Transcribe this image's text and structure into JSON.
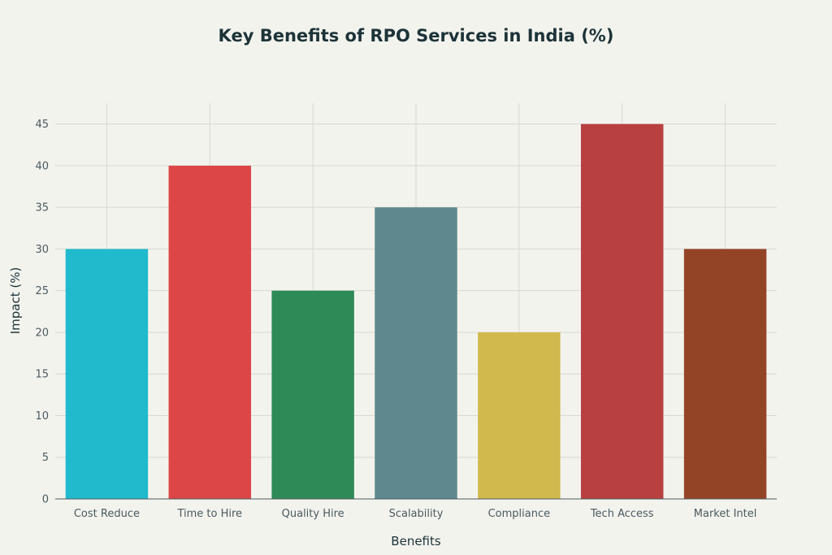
{
  "chart_data": {
    "type": "bar",
    "title": "Key Benefits of RPO Services in India (%)",
    "xlabel": "Benefits",
    "ylabel": "Impact (%)",
    "categories": [
      "Cost Reduce",
      "Time to Hire",
      "Quality Hire",
      "Scalability",
      "Compliance",
      "Tech Access",
      "Market Intel"
    ],
    "values": [
      30,
      40,
      25,
      35,
      20,
      45,
      30
    ],
    "colors": [
      "#21bacd",
      "#dc4646",
      "#2e8b57",
      "#5e888e",
      "#d2b94e",
      "#b84040",
      "#944426"
    ],
    "ylim": [
      0,
      47.5
    ],
    "yticks": [
      0,
      5,
      10,
      15,
      20,
      25,
      30,
      35,
      40,
      45
    ],
    "grid": true,
    "legend": "none"
  }
}
